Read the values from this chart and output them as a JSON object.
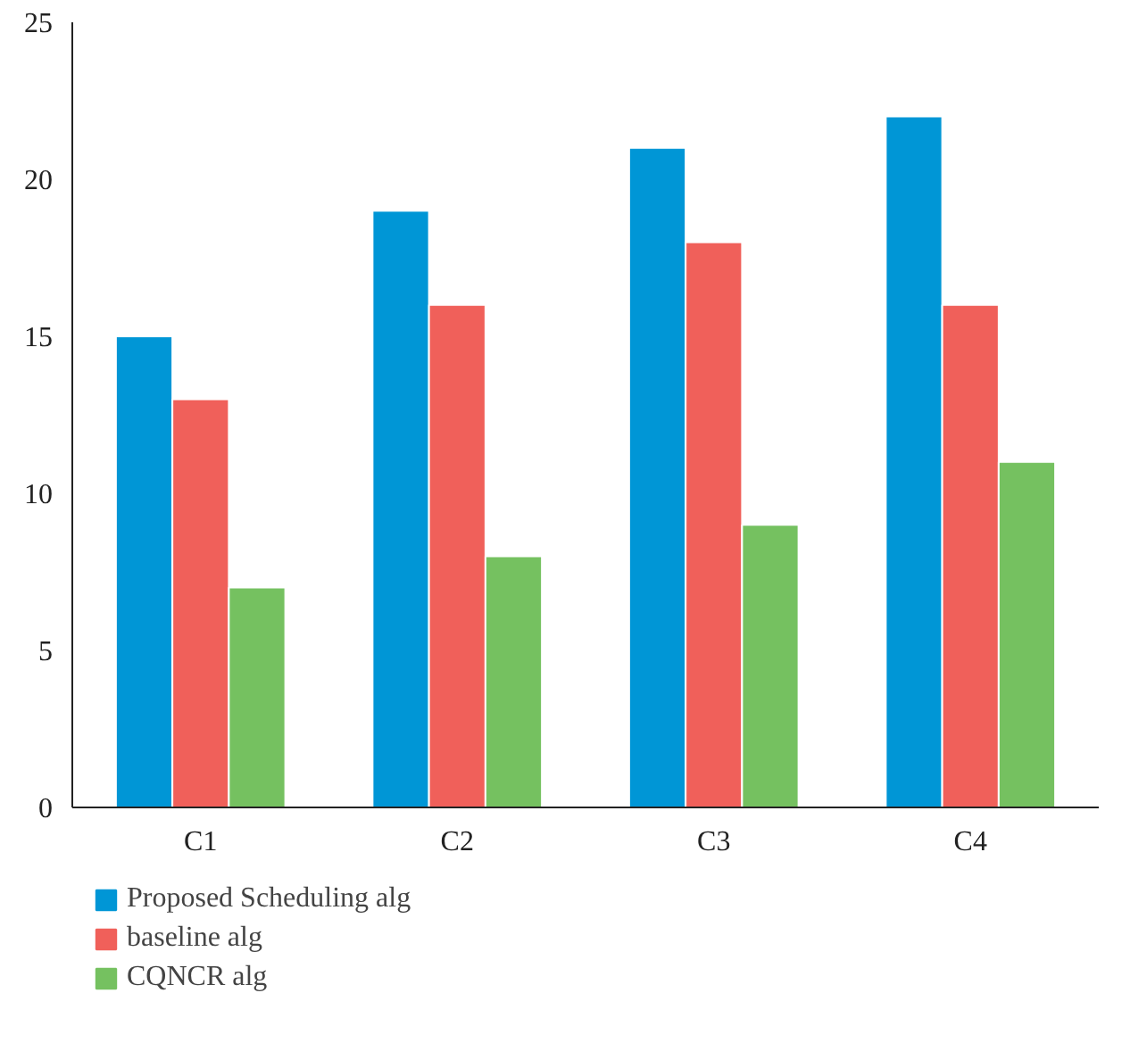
{
  "chart_data": {
    "type": "bar",
    "categories": [
      "C1",
      "C2",
      "C3",
      "C4"
    ],
    "series": [
      {
        "name": "Proposed Scheduling alg",
        "color": "#0096d6",
        "values": [
          15,
          19,
          21,
          22
        ]
      },
      {
        "name": "baseline alg",
        "color": "#f0605a",
        "values": [
          13,
          16,
          18,
          16
        ]
      },
      {
        "name": "CQNCR alg",
        "color": "#75c160",
        "values": [
          7,
          8,
          9,
          11
        ]
      }
    ],
    "ylim": [
      0,
      25
    ],
    "yticks": [
      0,
      5,
      10,
      15,
      20,
      25
    ],
    "grid": false,
    "legend": "bottom left"
  }
}
